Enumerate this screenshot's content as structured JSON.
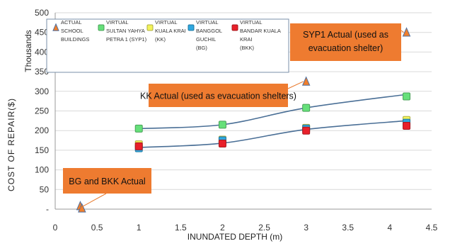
{
  "chart_data": {
    "type": "scatter",
    "xlabel": "INUNDATED DEPTH (m)",
    "ylabel": "COST OF REPAIR($)",
    "yunit": "Thousands",
    "xlim": [
      0,
      4.5
    ],
    "ylim": [
      0,
      500
    ],
    "xticks": [
      "0",
      "0.5",
      "1",
      "1.5",
      "2",
      "2.5",
      "3",
      "3.5",
      "4",
      "4.5"
    ],
    "yticks": [
      "-",
      "50",
      "100",
      "150",
      "200",
      "250",
      "300",
      "350",
      "400",
      "450",
      "500"
    ],
    "legend": [
      {
        "label": [
          "ACTUAL",
          "SCHOOL",
          "BUILDINGS"
        ],
        "marker": "triangle",
        "color": "#f07f2c"
      },
      {
        "label": [
          "VIRTUAL",
          "SULTAN YAHYA",
          "PETRA 1 (SYP1)"
        ],
        "marker": "square",
        "color": "#66e07a"
      },
      {
        "label": [
          "VIRTUAL",
          "KUALA KRAI",
          "(KK)"
        ],
        "marker": "square",
        "color": "#f3f35a"
      },
      {
        "label": [
          "VIRTUAL",
          "BANGGOL",
          "GUCHIL",
          "(BG)"
        ],
        "marker": "square",
        "color": "#2fa8e0"
      },
      {
        "label": [
          "VIRTUAL",
          "BANDAR KUALA",
          "KRAI",
          "(BKK)"
        ],
        "marker": "square",
        "color": "#e8202a"
      }
    ],
    "series": [
      {
        "name": "VIRTUAL SULTAN YAHYA PETRA 1 (SYP1)",
        "x": [
          1,
          2,
          3,
          4.2
        ],
        "y": [
          205,
          215,
          258,
          287
        ],
        "color": "#66e07a",
        "marker": "square"
      },
      {
        "name": "VIRTUAL KUALA KRAI (KK)",
        "x": [
          1,
          2,
          3,
          4.2
        ],
        "y": [
          165,
          177,
          207,
          227
        ],
        "color": "#f3f35a",
        "marker": "square"
      },
      {
        "name": "VIRTUAL BANGGOL GUCHIL (BG)",
        "x": [
          1,
          2,
          3,
          4.2
        ],
        "y": [
          155,
          175,
          205,
          220
        ],
        "color": "#2fa8e0",
        "marker": "square"
      },
      {
        "name": "VIRTUAL BANDAR KUALA KRAI (BKK)",
        "x": [
          1,
          2,
          3,
          4.2
        ],
        "y": [
          160,
          167,
          200,
          212
        ],
        "color": "#e8202a",
        "marker": "square"
      },
      {
        "name": "ACTUAL SCHOOL BUILDINGS",
        "x": [
          0.3,
          0.32,
          3,
          4.2
        ],
        "y": [
          8,
          2,
          325,
          450
        ],
        "color": "#f07f2c",
        "marker": "triangle"
      }
    ],
    "trendlines": [
      {
        "x": [
          1,
          2,
          3,
          4.2
        ],
        "y": [
          205,
          215,
          258,
          292
        ]
      },
      {
        "x": [
          1,
          2,
          3,
          4.2
        ],
        "y": [
          157,
          168,
          203,
          225
        ]
      }
    ],
    "annotations": [
      {
        "text": [
          "SYP1 Actual (used as",
          "evacuation shelter)"
        ],
        "target_x": 4.2,
        "target_y": 450
      },
      {
        "text": [
          "KK Actual (used as evacuation shelters)"
        ],
        "target_x": 3,
        "target_y": 325
      },
      {
        "text": [
          "BG and BKK Actual"
        ],
        "target_x": 0.32,
        "target_y": 2
      }
    ]
  }
}
